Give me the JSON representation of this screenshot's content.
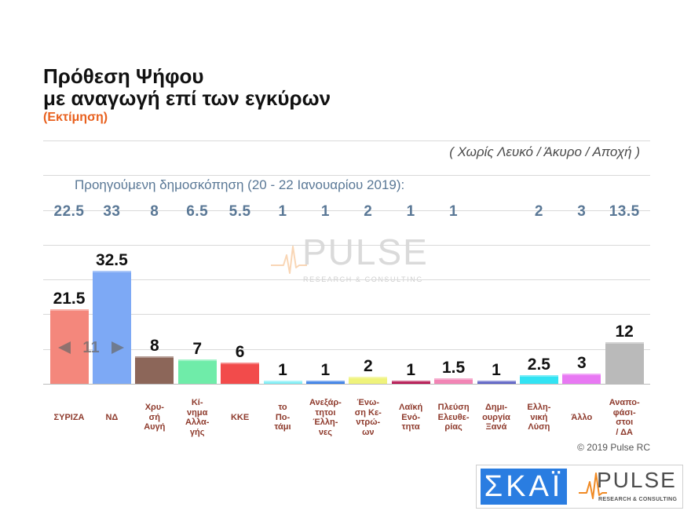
{
  "chart_data": {
    "type": "bar",
    "title": "Πρόθεση Ψήφου\nμε αναγωγή επί των εγκύρων",
    "subtitle": "(Εκτίμηση)",
    "note": "( Χωρίς Λευκό / Άκυρο / Αποχή )",
    "categories": [
      "ΣΥΡΙΖΑ",
      "ΝΔ",
      "Χρυ-\nσή\nΑυγή",
      "Κί-\nνημα\nΑλλα-\nγής",
      "ΚΚΕ",
      "το\nΠο-\nτάμι",
      "Ανεξάρ-\nτητοι\nΈλλη-\nνες",
      "Ένω-\nση Κε-\nντρώ-\nων",
      "Λαϊκή\nΕνό-\nτητα",
      "Πλεύση\nΕλευθε-\nρίας",
      "Δημι-\nουργία\nΞανά",
      "Ελλη-\nνική\nΛύση",
      "Άλλο",
      "Αναπο-\nφάσι-\nστοι\n/ ΔΑ"
    ],
    "values": [
      21.5,
      32.5,
      8,
      7,
      6,
      1,
      1,
      2,
      1,
      1.5,
      1,
      2.5,
      3,
      12
    ],
    "colors": [
      "#F4877C",
      "#7DA9F5",
      "#8C6659",
      "#6FECA9",
      "#F24B4B",
      "#7FEFF6",
      "#3A7FE7",
      "#EFF37B",
      "#B5134F",
      "#F285B5",
      "#5B60C5",
      "#32E3F3",
      "#E878F3",
      "#BABABA"
    ],
    "previous_poll": {
      "label": "Προηγούμενη δημοσκόπηση (20 - 22 Ιανουαρίου 2019):",
      "values": [
        22.5,
        33,
        8,
        6.5,
        5.5,
        1,
        1,
        2,
        1,
        1,
        null,
        2,
        3,
        13.5
      ]
    },
    "annotations": [
      {
        "text": "11",
        "icons": [
          "left-arrow-icon",
          "right-arrow-icon"
        ]
      }
    ],
    "xlabel": "",
    "ylabel": "",
    "ylim": [
      0,
      70
    ],
    "grid": true,
    "legend": "none"
  },
  "footer": {
    "copyright": "© 2019 Pulse RC"
  },
  "watermark": {
    "brand": "PULSE",
    "tagline": "RESEARCH & CONSULTING"
  },
  "logos": {
    "skai": "ΣΚΑΪ",
    "pulse": "PULSE",
    "pulse_tagline": "RESEARCH & CONSULTING"
  },
  "theme": {
    "accent": "#E8601E",
    "category_label": "#8E3A2C",
    "previous_values": "#5A7896",
    "skai_blue": "#2A7DE1",
    "pulse_orange": "#F08A24"
  }
}
